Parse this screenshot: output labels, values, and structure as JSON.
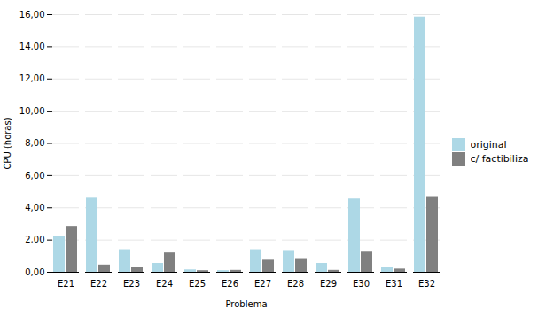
{
  "chart_data": {
    "type": "bar",
    "xlabel": "Problema",
    "ylabel": "CPU (horas)",
    "categories": [
      "E21",
      "E22",
      "E23",
      "E24",
      "E25",
      "E26",
      "E27",
      "E28",
      "E29",
      "E30",
      "E31",
      "E32"
    ],
    "series": [
      {
        "name": "original",
        "color": "#add8e6",
        "values": [
          2.2,
          4.6,
          1.4,
          0.55,
          0.15,
          0.1,
          1.4,
          1.35,
          0.55,
          4.55,
          0.3,
          15.85
        ]
      },
      {
        "name": "c/ factibiliza",
        "color": "#808080",
        "values": [
          2.85,
          0.45,
          0.3,
          1.2,
          0.1,
          0.12,
          0.75,
          0.85,
          0.12,
          1.25,
          0.2,
          4.7
        ]
      }
    ],
    "ylim": [
      0,
      16.0
    ],
    "yticks": [
      {
        "value": 0.0,
        "label": "0,00"
      },
      {
        "value": 2.0,
        "label": "2,00"
      },
      {
        "value": 4.0,
        "label": "4,00"
      },
      {
        "value": 6.0,
        "label": "6,00"
      },
      {
        "value": 8.0,
        "label": "8,00"
      },
      {
        "value": 10.0,
        "label": "10,00"
      },
      {
        "value": 12.0,
        "label": "12,00"
      },
      {
        "value": 14.0,
        "label": "14,00"
      },
      {
        "value": 16.0,
        "label": "16,00"
      }
    ],
    "grid": true,
    "legend": "right"
  }
}
